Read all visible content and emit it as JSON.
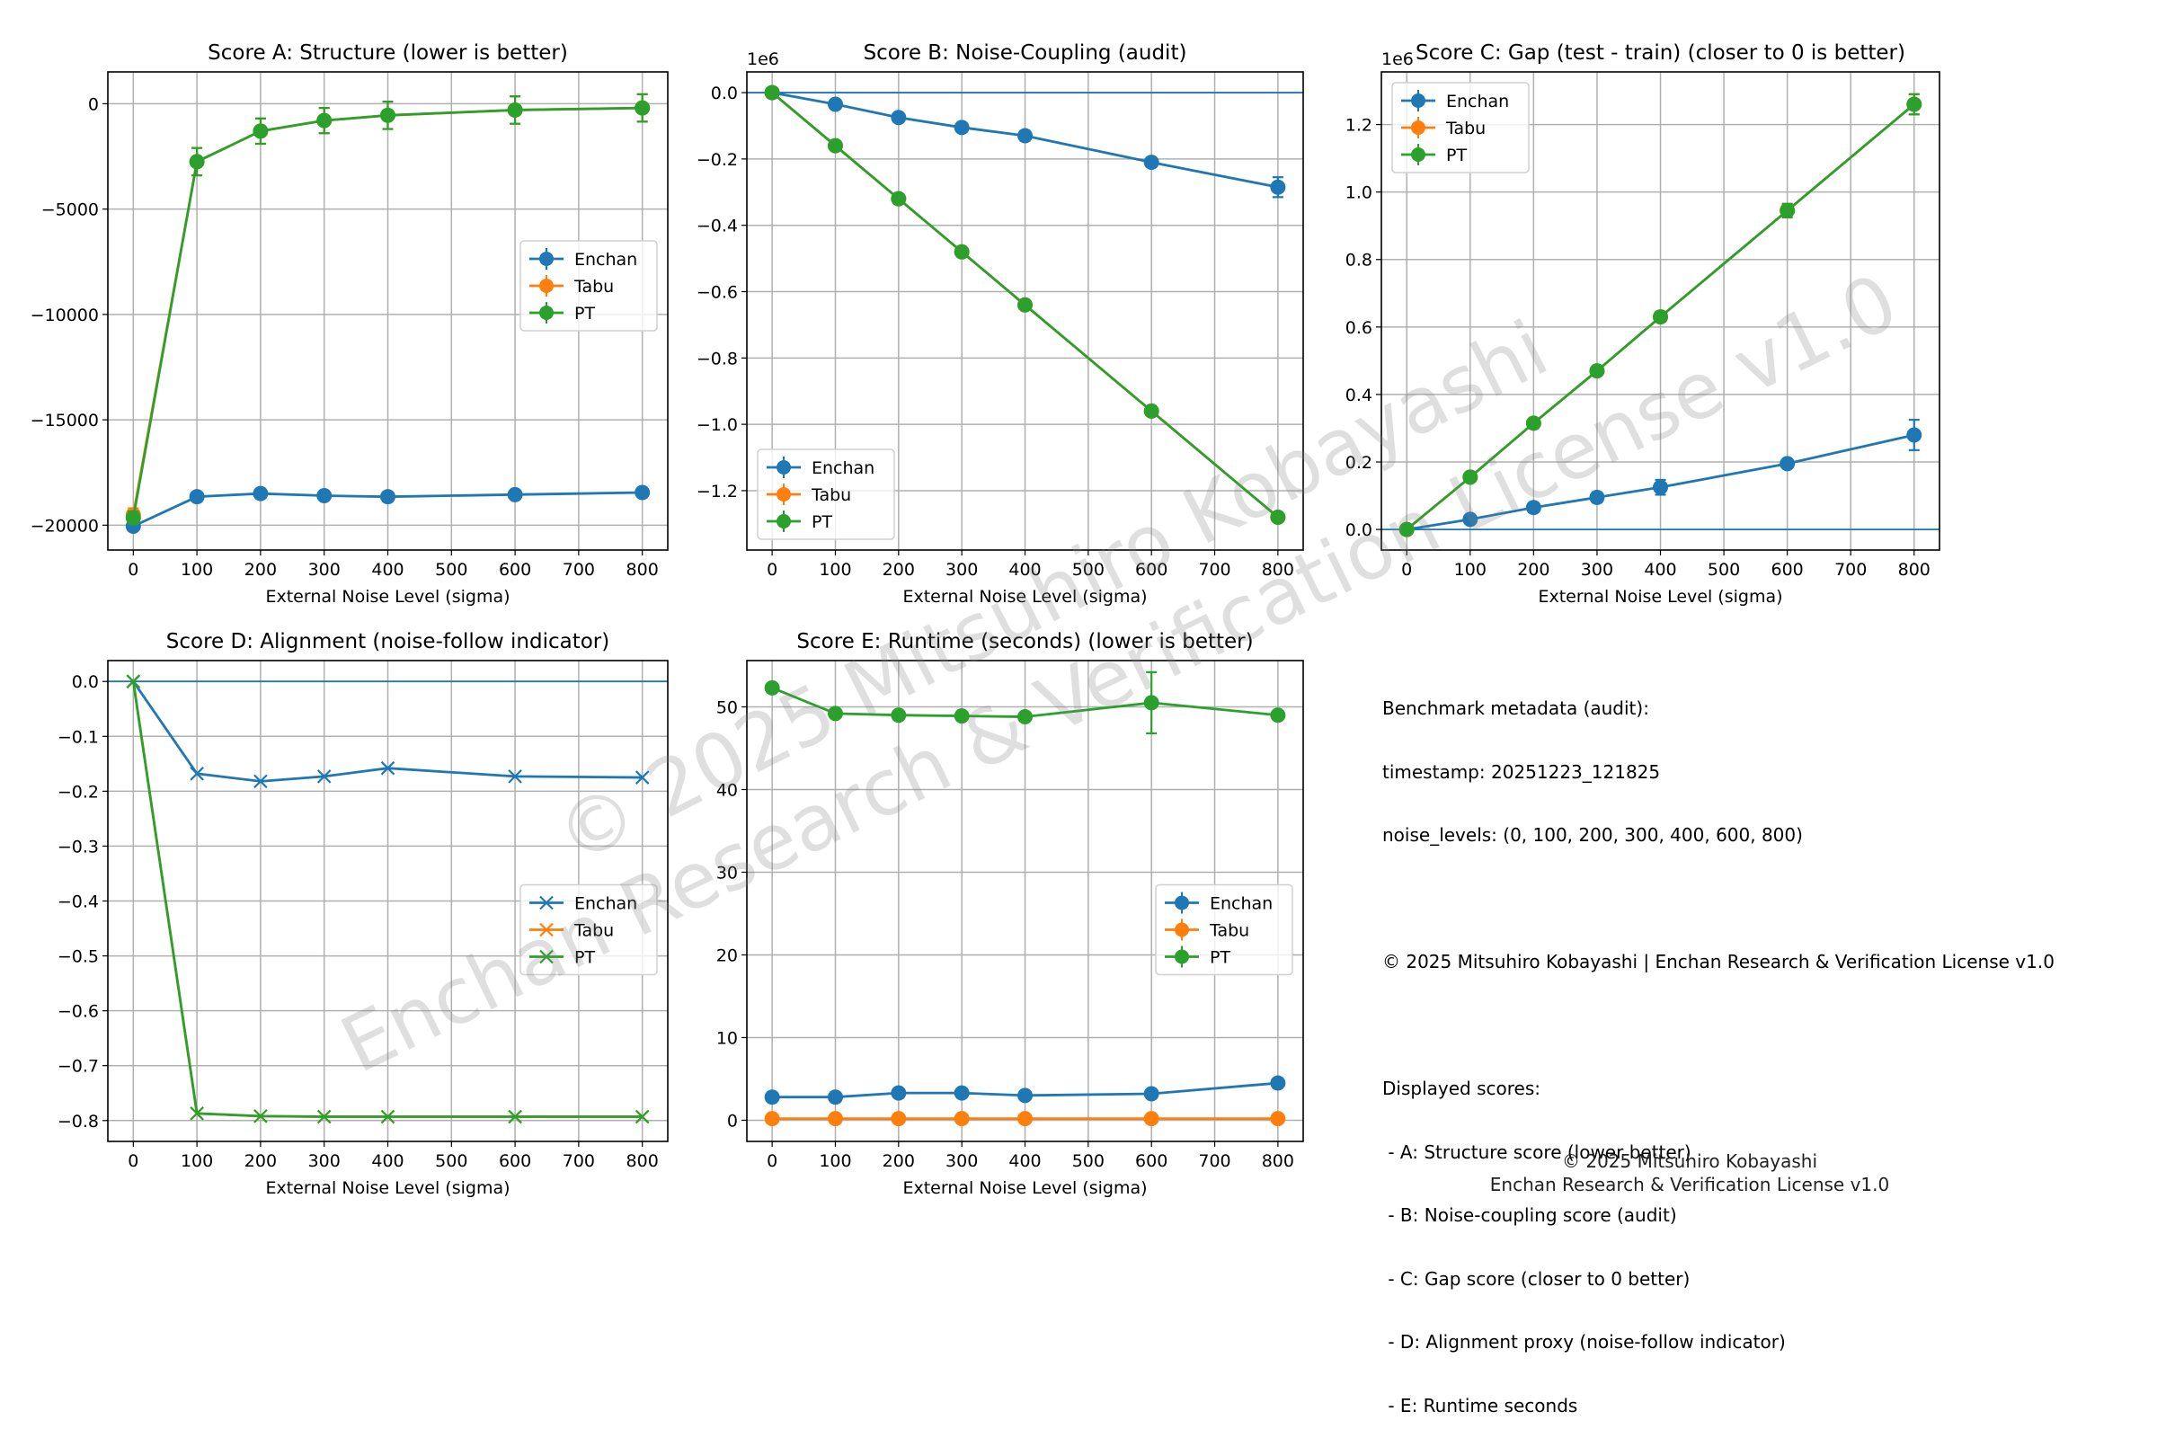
{
  "colors": {
    "Enchan": "#1f77b4",
    "Tabu": "#ff7f0e",
    "PT": "#2ca02c",
    "grid": "#b0b0b0"
  },
  "chart_data": [
    {
      "id": "A",
      "type": "line",
      "title": "Score A: Structure (lower is better)",
      "xlabel": "External Noise Level (sigma)",
      "ylabel": "",
      "x": [
        0,
        100,
        200,
        300,
        400,
        600,
        800
      ],
      "xlim": [
        -40,
        840
      ],
      "ylim": [
        -21180,
        1510
      ],
      "xticks": [
        0,
        100,
        200,
        300,
        400,
        500,
        600,
        700,
        800
      ],
      "yticks": [
        0,
        -5000,
        -10000,
        -15000,
        -20000
      ],
      "ytick_labels": [
        "0",
        "−5000",
        "−10000",
        "−15000",
        "−20000"
      ],
      "offset_text": "",
      "marker": "o",
      "grid": true,
      "zero_line": false,
      "legend": "center-right",
      "series": [
        {
          "name": "Enchan",
          "values": [
            -20050,
            -18650,
            -18500,
            -18600,
            -18650,
            -18550,
            -18450
          ],
          "errors": [
            150,
            200,
            200,
            150,
            150,
            150,
            120
          ]
        },
        {
          "name": "Tabu",
          "values": [
            -19500,
            -2750,
            -1300,
            -800,
            -550,
            -300,
            -200
          ],
          "errors": [
            300,
            650,
            600,
            600,
            650,
            650,
            650
          ]
        },
        {
          "name": "PT",
          "values": [
            -19650,
            -2750,
            -1300,
            -800,
            -550,
            -300,
            -200
          ],
          "errors": [
            300,
            650,
            600,
            600,
            650,
            650,
            650
          ]
        }
      ]
    },
    {
      "id": "B",
      "type": "line",
      "title": "Score B: Noise-Coupling (audit)",
      "xlabel": "External Noise Level (sigma)",
      "ylabel": "",
      "x": [
        0,
        100,
        200,
        300,
        400,
        600,
        800
      ],
      "xlim": [
        -40,
        840
      ],
      "ylim": [
        -1.379,
        0.0625
      ],
      "xticks": [
        0,
        100,
        200,
        300,
        400,
        500,
        600,
        700,
        800
      ],
      "yticks": [
        0,
        -0.2,
        -0.4,
        -0.6,
        -0.8,
        -1.0,
        -1.2
      ],
      "ytick_labels": [
        "0.0",
        "−0.2",
        "−0.4",
        "−0.6",
        "−0.8",
        "−1.0",
        "−1.2"
      ],
      "offset_text": "1e6",
      "marker": "o",
      "grid": true,
      "zero_line": true,
      "legend": "lower-left",
      "series": [
        {
          "name": "Enchan",
          "values": [
            0,
            -0.035,
            -0.075,
            -0.105,
            -0.13,
            -0.21,
            -0.285
          ],
          "errors": [
            0,
            0.005,
            0.007,
            0.012,
            0.015,
            0.005,
            0.03
          ]
        },
        {
          "name": "Tabu",
          "values": [
            0,
            -0.16,
            -0.32,
            -0.48,
            -0.64,
            -0.96,
            -1.28
          ],
          "errors": [
            0,
            0.003,
            0.003,
            0.003,
            0.003,
            0.003,
            0.003
          ]
        },
        {
          "name": "PT",
          "values": [
            0,
            -0.16,
            -0.32,
            -0.48,
            -0.64,
            -0.96,
            -1.28
          ],
          "errors": [
            0,
            0.003,
            0.003,
            0.003,
            0.003,
            0.003,
            0.003
          ]
        }
      ]
    },
    {
      "id": "C",
      "type": "line",
      "title": "Score C: Gap (test - train) (closer to 0 is better)",
      "xlabel": "External Noise Level (sigma)",
      "ylabel": "",
      "x": [
        0,
        100,
        200,
        300,
        400,
        600,
        800
      ],
      "xlim": [
        -40,
        840
      ],
      "ylim": [
        -0.061,
        1.356
      ],
      "xticks": [
        0,
        100,
        200,
        300,
        400,
        500,
        600,
        700,
        800
      ],
      "yticks": [
        0,
        0.2,
        0.4,
        0.6,
        0.8,
        1.0,
        1.2
      ],
      "ytick_labels": [
        "0.0",
        "0.2",
        "0.4",
        "0.6",
        "0.8",
        "1.0",
        "1.2"
      ],
      "offset_text": "1e6",
      "marker": "o",
      "grid": true,
      "zero_line": true,
      "legend": "upper-left",
      "series": [
        {
          "name": "Enchan",
          "values": [
            0,
            0.03,
            0.065,
            0.095,
            0.125,
            0.195,
            0.28
          ],
          "errors": [
            0,
            0.005,
            0.012,
            0.015,
            0.022,
            0.005,
            0.045
          ]
        },
        {
          "name": "Tabu",
          "values": [
            0,
            0.155,
            0.315,
            0.47,
            0.63,
            0.945,
            1.26
          ],
          "errors": [
            0,
            0.005,
            0.01,
            0.01,
            0.015,
            0.02,
            0.03
          ]
        },
        {
          "name": "PT",
          "values": [
            0,
            0.155,
            0.315,
            0.47,
            0.63,
            0.945,
            1.26
          ],
          "errors": [
            0,
            0.005,
            0.01,
            0.01,
            0.015,
            0.02,
            0.03
          ]
        }
      ]
    },
    {
      "id": "D",
      "type": "line",
      "title": "Score D: Alignment (noise-follow indicator)",
      "xlabel": "External Noise Level (sigma)",
      "ylabel": "",
      "x": [
        0,
        100,
        200,
        300,
        400,
        600,
        800
      ],
      "xlim": [
        -40,
        840
      ],
      "ylim": [
        -0.838,
        0.038
      ],
      "xticks": [
        0,
        100,
        200,
        300,
        400,
        500,
        600,
        700,
        800
      ],
      "yticks": [
        0,
        -0.1,
        -0.2,
        -0.3,
        -0.4,
        -0.5,
        -0.6,
        -0.7,
        -0.8
      ],
      "ytick_labels": [
        "0.0",
        "−0.1",
        "−0.2",
        "−0.3",
        "−0.4",
        "−0.5",
        "−0.6",
        "−0.7",
        "−0.8"
      ],
      "offset_text": "",
      "marker": "x",
      "grid": true,
      "zero_line": true,
      "legend": "center-right",
      "series": [
        {
          "name": "Enchan",
          "values": [
            0,
            -0.168,
            -0.182,
            -0.173,
            -0.158,
            -0.173,
            -0.175
          ]
        },
        {
          "name": "Tabu",
          "values": [
            0,
            -0.787,
            -0.792,
            -0.793,
            -0.793,
            -0.793,
            -0.793
          ]
        },
        {
          "name": "PT",
          "values": [
            0,
            -0.787,
            -0.792,
            -0.793,
            -0.793,
            -0.793,
            -0.793
          ]
        }
      ]
    },
    {
      "id": "E",
      "type": "line",
      "title": "Score E: Runtime (seconds) (lower is better)",
      "xlabel": "External Noise Level (sigma)",
      "ylabel": "",
      "x": [
        0,
        100,
        200,
        300,
        400,
        600,
        800
      ],
      "xlim": [
        -40,
        840
      ],
      "ylim": [
        -2.56,
        55.6
      ],
      "xticks": [
        0,
        100,
        200,
        300,
        400,
        500,
        600,
        700,
        800
      ],
      "yticks": [
        0,
        10,
        20,
        30,
        40,
        50
      ],
      "ytick_labels": [
        "0",
        "10",
        "20",
        "30",
        "40",
        "50"
      ],
      "offset_text": "",
      "marker": "o",
      "grid": true,
      "zero_line": false,
      "legend": "center-right",
      "series": [
        {
          "name": "Enchan",
          "values": [
            2.8,
            2.8,
            3.3,
            3.3,
            3.0,
            3.2,
            4.5
          ],
          "errors": [
            0.1,
            0.1,
            0.15,
            0.15,
            0.1,
            0.1,
            0.2
          ]
        },
        {
          "name": "Tabu",
          "values": [
            0.2,
            0.2,
            0.2,
            0.2,
            0.2,
            0.2,
            0.2
          ],
          "errors": [
            0,
            0,
            0,
            0,
            0,
            0,
            0
          ]
        },
        {
          "name": "PT",
          "values": [
            52.3,
            49.2,
            49.0,
            48.9,
            48.8,
            50.5,
            49.0
          ],
          "errors": [
            0.3,
            0.2,
            0.2,
            0.2,
            0.2,
            3.7,
            0.2
          ]
        }
      ]
    }
  ],
  "metadata": {
    "lines": [
      "Benchmark metadata (audit):",
      "timestamp: 20251223_121825",
      "noise_levels: (0, 100, 200, 300, 400, 600, 800)",
      "",
      "© 2025 Mitsuhiro Kobayashi | Enchan Research & Verification License v1.0",
      "",
      "Displayed scores:",
      " - A: Structure score (lower better)",
      " - B: Noise-coupling score (audit)",
      " - C: Gap score (closer to 0 better)",
      " - D: Alignment proxy (noise-follow indicator)",
      " - E: Runtime seconds"
    ]
  },
  "footer": {
    "line1": "© 2025 Mitsuhiro Kobayashi",
    "line2": "Enchan Research & Verification License v1.0"
  },
  "watermark": {
    "line1": "© 2025 Mitsuhiro Kobayashi",
    "line2": "Enchan Research & Verification License v1.0"
  }
}
